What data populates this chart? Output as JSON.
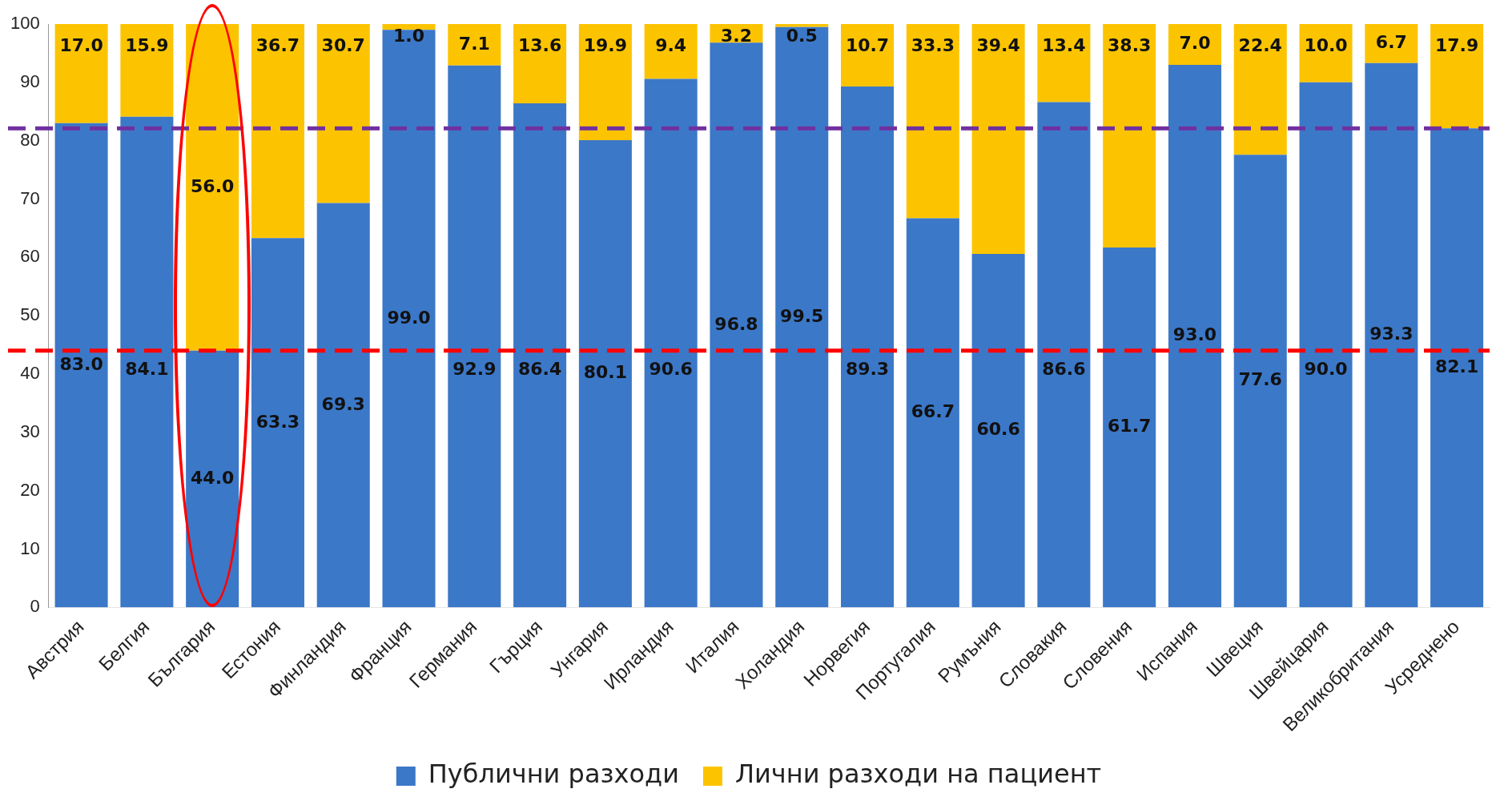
{
  "chart_data": {
    "type": "bar",
    "stacked": true,
    "categories": [
      "Австрия",
      "Белгия",
      "България",
      "Естония",
      "Финландия",
      "Франция",
      "Германия",
      "Гърция",
      "Унгария",
      "Ирландия",
      "Италия",
      "Холандия",
      "Норвегия",
      "Португалия",
      "Румъния",
      "Словакия",
      "Словения",
      "Испания",
      "Швеция",
      "Швейцария",
      "Великобритания",
      "Усреднено"
    ],
    "series": [
      {
        "name": "Публични разходи",
        "color": "#3c78c8",
        "values": [
          83.0,
          84.1,
          44.0,
          63.3,
          69.3,
          99.0,
          92.9,
          86.4,
          80.1,
          90.6,
          96.8,
          99.5,
          89.3,
          66.7,
          60.6,
          86.6,
          61.7,
          93.0,
          77.6,
          90.0,
          93.3,
          82.1
        ],
        "value_labels": [
          "83.0",
          "84.1",
          "44.0",
          "63.3",
          "69.3",
          "99.0",
          "92.9",
          "86.4",
          "80.1",
          "90.6",
          "96.8",
          "99.5",
          "89.3",
          "66.7",
          "60.6",
          "86.6",
          "61.7",
          "93.0",
          "77.6",
          "90.0",
          "93.3",
          "82.1"
        ]
      },
      {
        "name": "Лични разходи на пациент",
        "color": "#fcc400",
        "values": [
          17.0,
          15.9,
          56.0,
          36.7,
          30.7,
          1.0,
          7.1,
          13.6,
          19.9,
          9.4,
          3.2,
          0.5,
          10.7,
          33.3,
          39.4,
          13.4,
          38.3,
          7.0,
          22.4,
          10.0,
          6.7,
          17.9
        ],
        "value_labels": [
          "17.0",
          "15.9",
          "56.0",
          "36.7",
          "30.7",
          "1.0",
          "7.1",
          "13.6",
          "19.9",
          "9.4",
          "3.2",
          "0.5",
          "10.7",
          "33.3",
          "39.4",
          "13.4",
          "38.3",
          "7.0",
          "22.4",
          "10.0",
          "6.7",
          "17.9"
        ]
      }
    ],
    "ylim": [
      0,
      100
    ],
    "yticks": [
      0,
      10,
      20,
      30,
      40,
      50,
      60,
      70,
      80,
      90,
      100
    ],
    "grid": false,
    "legend": "bottom",
    "ref_lines": [
      {
        "axis": "y",
        "value": 82.1,
        "color": "#7030a0",
        "line_style": "dashed"
      },
      {
        "axis": "y",
        "value": 44.0,
        "color": "#ff0000",
        "line_style": "dashed"
      }
    ]
  }
}
